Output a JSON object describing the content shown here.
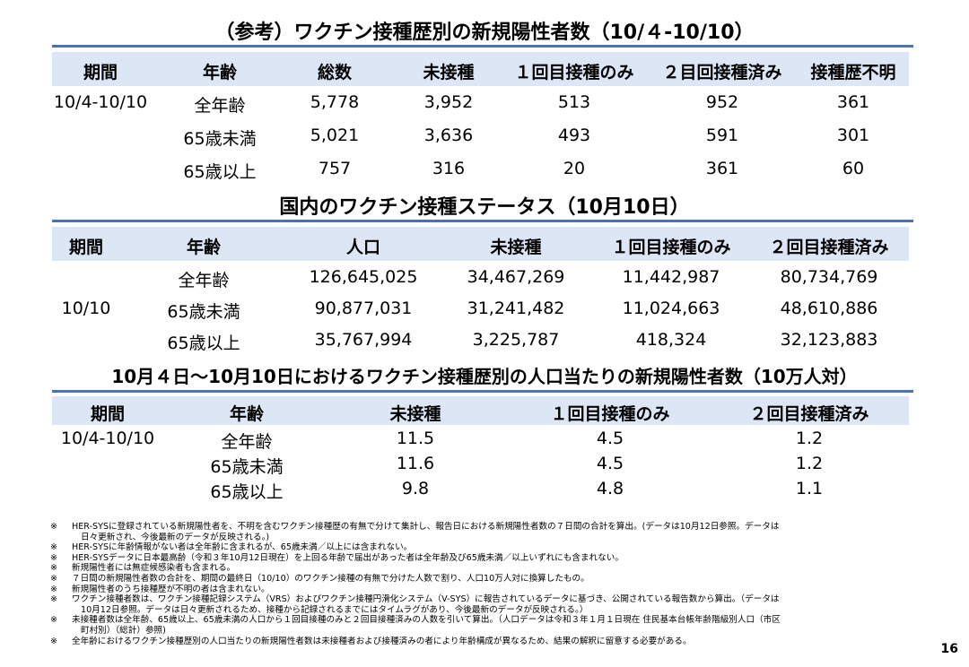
{
  "table1": {
    "title": "（参考）ワクチン接種歴別の新規陽性者数（10/４-10/10）",
    "headers": [
      "期間",
      "年齢",
      "総数",
      "未接種",
      "１回目接種のみ",
      "２目回接種済み",
      "接種歴不明"
    ],
    "rows": [
      [
        "10/4-10/10",
        "全年齢",
        "5,778",
        "3,952",
        "513",
        "952",
        "361"
      ],
      [
        "",
        "65歳未満",
        "5,021",
        "3,636",
        "493",
        "591",
        "301"
      ],
      [
        "",
        "65歳以上",
        "757",
        "316",
        "20",
        "361",
        "60"
      ]
    ]
  },
  "table2": {
    "title": "国内のワクチン接種ステータス（10月10日）",
    "headers": [
      "期間",
      "年齢",
      "人口",
      "未接種",
      "１回目接種のみ",
      "２回目接種済み"
    ],
    "period": "10/10",
    "rows": [
      [
        "全年齢",
        "126,645,025",
        "34,467,269",
        "11,442,987",
        "80,734,769"
      ],
      [
        "65歳未満",
        "90,877,031",
        "31,241,482",
        "11,024,663",
        "48,610,886"
      ],
      [
        "65歳以上",
        "35,767,994",
        "3,225,787",
        "418,324",
        "32,123,883"
      ]
    ]
  },
  "table3": {
    "title": "10月４日～10月10日におけるワクチン接種歴別の人口当たりの新規陽性者数（10万人対）",
    "headers": [
      "期間",
      "年齢",
      "未接種",
      "１回目接種のみ",
      "２回目接種済み"
    ],
    "rows": [
      [
        "10/4-10/10",
        "全年齢",
        "11.5",
        "4.5",
        "1.2"
      ],
      [
        "",
        "65歳未満",
        "11.6",
        "4.5",
        "1.2"
      ],
      [
        "",
        "65歳以上",
        "9.8",
        "4.8",
        "1.1"
      ]
    ]
  },
  "notes": [
    {
      "mark": "※",
      "text": "HER-SYSに登録されている新規陽性者を、不明を含むワクチン接種歴の有無で分けて集計し、報告日における新規陽性者数の７日間の合計を算出。(データは10月12日参照。データは"
    },
    {
      "mark": "",
      "text": "日々更新され、今後最新のデータが反映される。)"
    },
    {
      "mark": "※",
      "text": "HER-SYSに年齢情報がない者は全年齢に含まれるが、65歳未満／以上には含まれない。"
    },
    {
      "mark": "※",
      "text": "HER-SYSデータに日本最高齢（令和３年10月12日現在）を上回る年齢で届出があった者は全年齢及び65歳未満／以上いずれにも含まれない。"
    },
    {
      "mark": "※",
      "text": "新規陽性者には無症候感染者も含まれる。"
    },
    {
      "mark": "※",
      "text": "７日間の新規陽性者数の合計を、期間の最終日（10/10）のワクチン接種の有無で分けた人数で割り、人口10万人対に換算したもの。"
    },
    {
      "mark": "※",
      "text": "新規陽性者のうち接種歴が不明の者は含まれない。"
    },
    {
      "mark": "※",
      "text": "ワクチン接種者数は、ワクチン接種記録システム（VRS）およびワクチン接種円滑化システム（V-SYS）に報告されているデータに基づき、公開されている報告数から算出。（データは"
    },
    {
      "mark": "",
      "text": "10月12日参照。データは日々更新されるため、接種から記録されるまでにはタイムラグがあり、今後最新のデータが反映される。）"
    },
    {
      "mark": "※",
      "text": "未接種者数は全年齢、65歳以上、65歳未満の人口から１回目接種のみと２回目接種済みの人数を引いて算出。（人口データは令和３年１月１日現在 住民基本台帳年齢階級別人口（市区"
    },
    {
      "mark": "",
      "text": "町村別）（総計）参照)"
    },
    {
      "mark": "※",
      "text": "全年齢におけるワクチン接種歴別の人口当たりの新規陽性者数は未接種者および接種済みの者により年齢構成が異なるため、結果の解釈に留意する必要がある。"
    }
  ],
  "page_number": "16"
}
